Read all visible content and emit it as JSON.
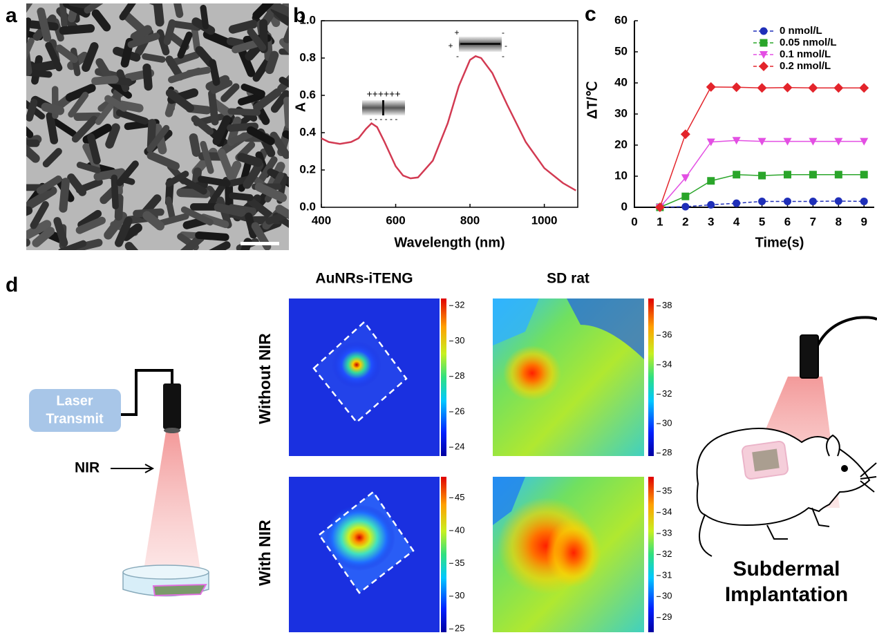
{
  "panel_labels": [
    "a",
    "b",
    "c",
    "d"
  ],
  "chart_data": [
    {
      "type": "line",
      "x_label": "Wavelength (nm)",
      "y_label": "A",
      "color": "#d23a52",
      "x": [
        400,
        420,
        450,
        480,
        500,
        520,
        535,
        550,
        570,
        600,
        620,
        640,
        660,
        700,
        740,
        770,
        800,
        815,
        830,
        860,
        900,
        950,
        1000,
        1050,
        1085
      ],
      "values": [
        0.37,
        0.35,
        0.34,
        0.35,
        0.37,
        0.42,
        0.45,
        0.43,
        0.35,
        0.22,
        0.17,
        0.155,
        0.16,
        0.25,
        0.45,
        0.65,
        0.79,
        0.81,
        0.8,
        0.72,
        0.55,
        0.35,
        0.21,
        0.13,
        0.09
      ],
      "xlim": [
        400,
        1090
      ],
      "xticks": [
        400,
        600,
        800,
        1000
      ],
      "ylim": [
        0,
        1.0
      ],
      "yticks": [
        {
          "value": 0,
          "label": "0.0"
        },
        0.2,
        0.4,
        0.6,
        0.8,
        {
          "value": 1,
          "label": "1.0"
        }
      ],
      "annotations": [
        "++++++",
        "- - - - - -",
        "+",
        "-"
      ]
    },
    {
      "type": "line",
      "x_label": "Time(s)",
      "y_label": "ΔT/℃",
      "x": [
        1,
        2,
        3,
        4,
        5,
        6,
        7,
        8,
        9
      ],
      "series": [
        {
          "name": "0 nmol/L",
          "color": "#1f2fb8",
          "marker": "circle",
          "values": [
            0,
            0.2,
            0.8,
            1.3,
            1.9,
            1.9,
            1.9,
            2.0,
            1.9
          ]
        },
        {
          "name": "0.05 nmol/L",
          "color": "#2aa52a",
          "marker": "square",
          "values": [
            0,
            3.5,
            8.5,
            10.5,
            10.2,
            10.5,
            10.5,
            10.5,
            10.5
          ]
        },
        {
          "name": "0.1 nmol/L",
          "color": "#e34fe3",
          "marker": "triangle-down",
          "values": [
            0,
            9.5,
            21,
            21.5,
            21.2,
            21.2,
            21.2,
            21.2,
            21.2
          ]
        },
        {
          "name": "0.2 nmol/L",
          "color": "#e3242b",
          "marker": "diamond",
          "values": [
            0,
            23.5,
            38.7,
            38.6,
            38.4,
            38.5,
            38.4,
            38.4,
            38.4
          ]
        }
      ],
      "xlim": [
        0,
        9.4
      ],
      "xticks": [
        0,
        1,
        2,
        3,
        4,
        5,
        6,
        7,
        8,
        9
      ],
      "ylim": [
        0,
        60
      ],
      "yticks": [
        0,
        10,
        20,
        30,
        40,
        50,
        60
      ],
      "legend": "upper-right"
    }
  ],
  "panel_d": {
    "column_titles": [
      "AuNRs-iTENG",
      "SD rat"
    ],
    "row_labels": [
      "Without NIR",
      "With NIR"
    ],
    "laser_label": [
      "Laser",
      "Transmit"
    ],
    "nir_label": "NIR",
    "implant_label": [
      "Subdermal",
      "Implantation"
    ],
    "colorbars": [
      {
        "lim": [
          23.5,
          32.4
        ],
        "ticks": [
          24,
          26,
          28,
          30,
          32
        ]
      },
      {
        "lim": [
          27.8,
          38.5
        ],
        "ticks": [
          28,
          30,
          32,
          34,
          36,
          38
        ]
      },
      {
        "lim": [
          24.5,
          48.2
        ],
        "ticks": [
          25,
          30,
          35,
          40,
          45
        ]
      },
      {
        "lim": [
          28.3,
          35.7
        ],
        "ticks": [
          29,
          30,
          31,
          32,
          33,
          34,
          35
        ]
      }
    ]
  }
}
